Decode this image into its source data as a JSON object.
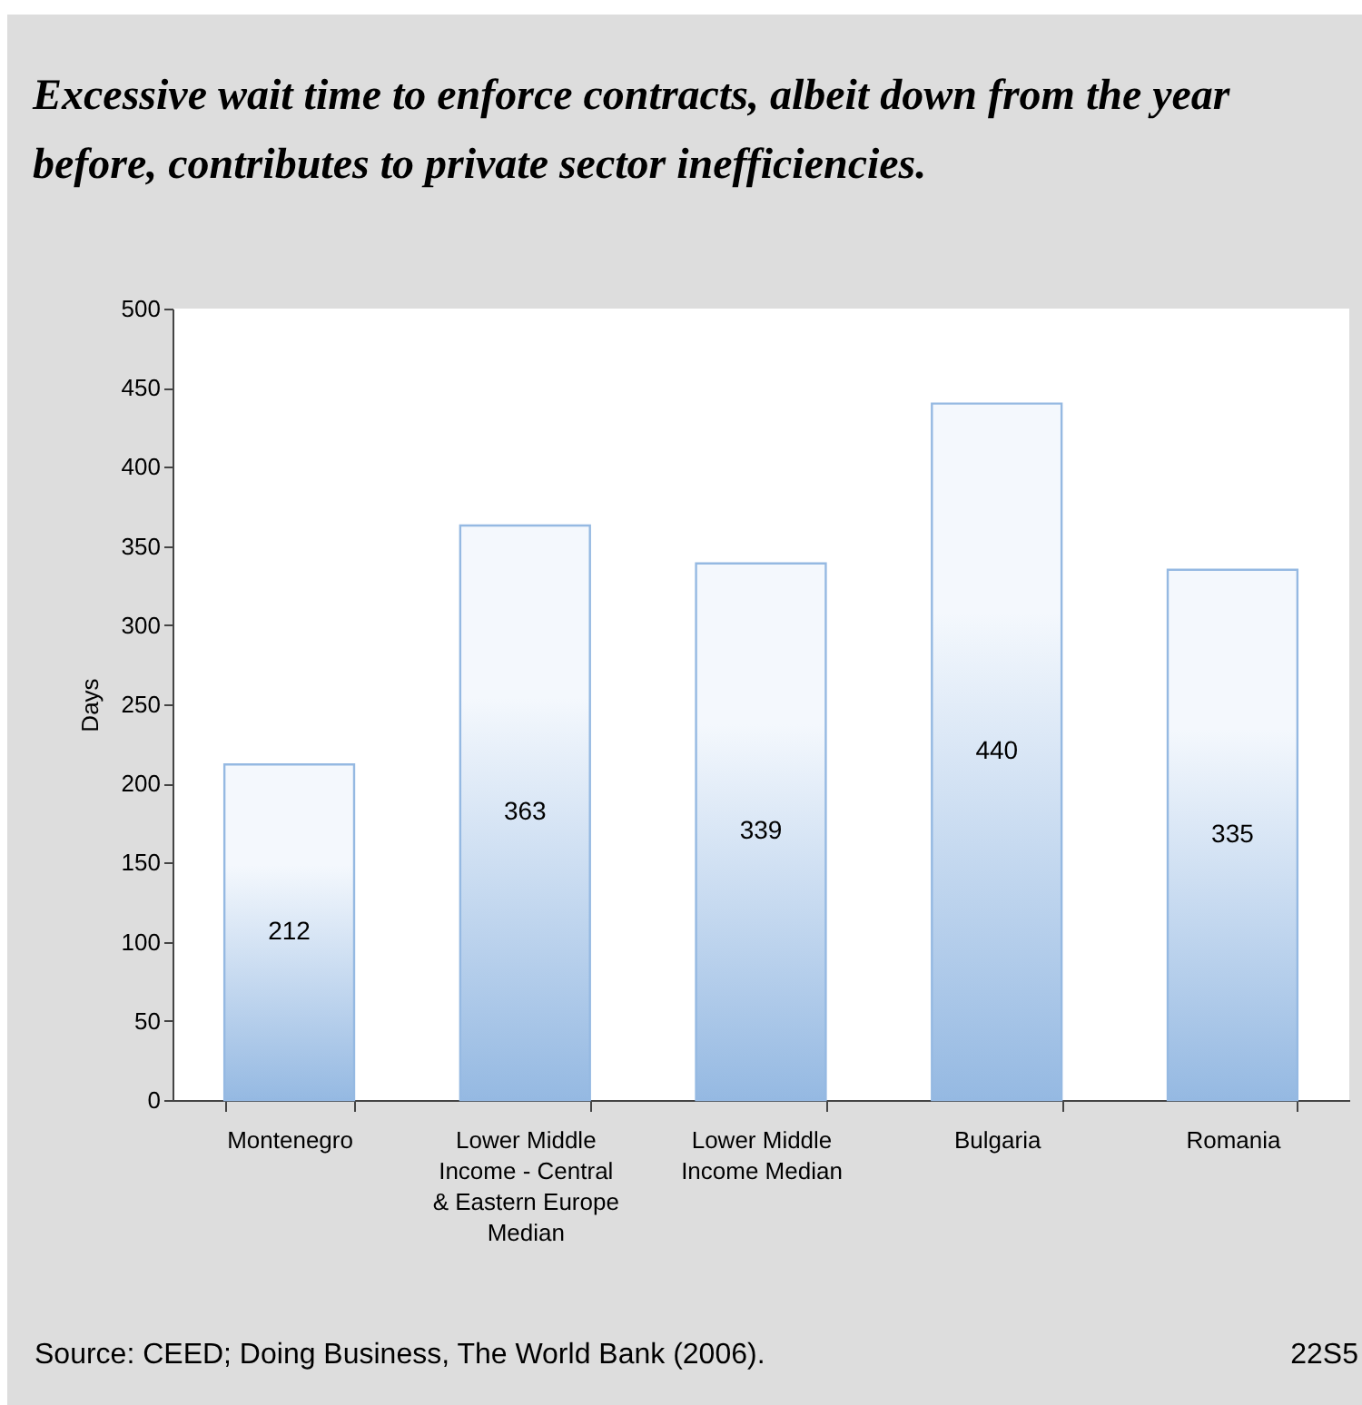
{
  "chart_data": {
    "type": "bar",
    "title": "Excessive wait time to enforce contracts, albeit down from the year before, contributes to private sector inefficiencies.",
    "ylabel": "Days",
    "categories": [
      "Montenegro",
      "Lower Middle Income - Central & Eastern Europe Median",
      "Lower Middle Income Median",
      "Bulgaria",
      "Romania"
    ],
    "values": [
      212,
      363,
      339,
      440,
      335
    ],
    "color": "#95b9e2",
    "ylim": [
      0,
      500
    ],
    "yticks": [
      0,
      50,
      100,
      150,
      200,
      250,
      300,
      350,
      400,
      450,
      500
    ],
    "data_labels": true,
    "grid": false,
    "annotations": [
      "Source: CEED; Doing Business, The World Bank (2006).",
      "22S5"
    ]
  }
}
